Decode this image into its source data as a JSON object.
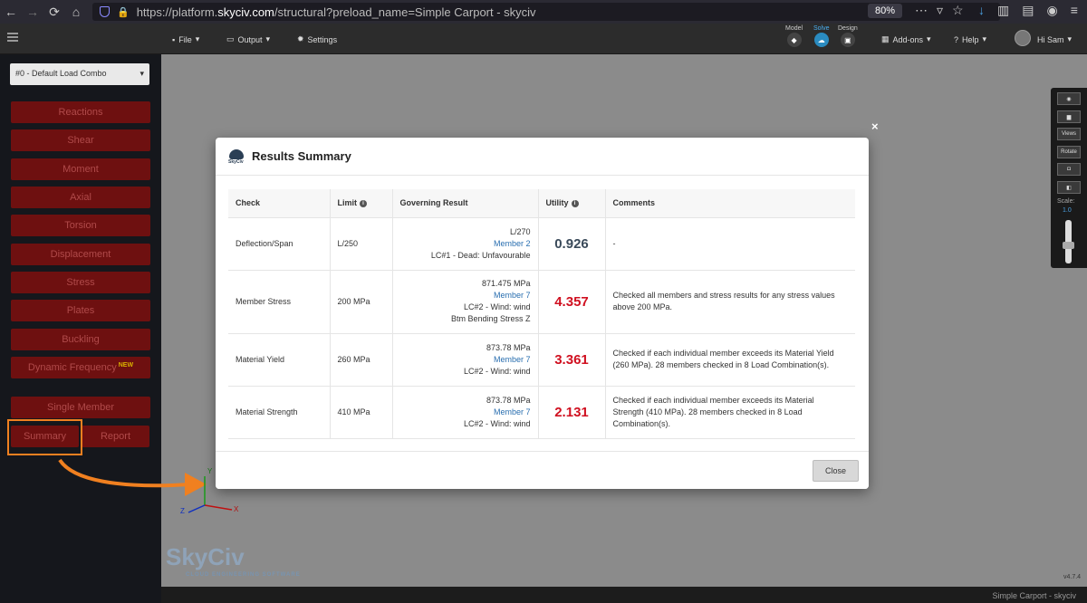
{
  "browser": {
    "url_prefix": "https://platform.",
    "url_host": "skyciv.com",
    "url_path": "/structural?preload_name=Simple Carport - skyciv",
    "zoom": "80%"
  },
  "app": {
    "menu": [
      {
        "label": "File",
        "icon": "page-icon"
      },
      {
        "label": "Output",
        "icon": "monitor-icon"
      },
      {
        "label": "Settings",
        "icon": "gear-icon"
      }
    ],
    "stages": [
      {
        "label": "Model",
        "color": "#444"
      },
      {
        "label": "Solve",
        "color": "#2a8bc0"
      },
      {
        "label": "Design",
        "color": "#444"
      }
    ],
    "addons": "Add-ons",
    "help": "Help",
    "user": "Hi Sam"
  },
  "sidebar": {
    "combo": "#0 - Default Load Combo",
    "buttons": [
      "Reactions",
      "Shear",
      "Moment",
      "Axial",
      "Torsion",
      "Displacement",
      "Stress",
      "Plates",
      "Buckling"
    ],
    "dynamic": "Dynamic Frequency",
    "dynamic_badge": "NEW",
    "single_member": "Single Member",
    "summary": "Summary",
    "report": "Report"
  },
  "canvas": {
    "axis_y": "Y",
    "axis_x": "X",
    "axis_z": "Z",
    "logo": "SkyCiv",
    "logo_sub": "CLOUD ENGINEERING SOFTWARE",
    "version": "v4.7.4",
    "status": "Simple Carport - skyciv",
    "toolbar": {
      "views": "Views",
      "rotate": "Rotate",
      "scale": "Scale:",
      "scale_value": "1.0"
    }
  },
  "modal": {
    "title": "Results Summary",
    "logo_text": "SkyCiv",
    "close_x": "×",
    "close_button": "Close",
    "columns": [
      "Check",
      "Limit",
      "Governing Result",
      "Utility",
      "Comments"
    ],
    "rows": [
      {
        "check": "Deflection/Span",
        "limit": "L/250",
        "gov1": "L/270",
        "gov2": "Member 2",
        "gov3": "LC#1 - Dead: Unfavourable",
        "gov4": "",
        "utility": "0.926",
        "status": "ok",
        "comment": "-"
      },
      {
        "check": "Member Stress",
        "limit": "200 MPa",
        "gov1": "871.475 MPa",
        "gov2": "Member 7",
        "gov3": "LC#2 - Wind: wind",
        "gov4": "Btm Bending Stress Z",
        "utility": "4.357",
        "status": "fail",
        "comment": "Checked all members and stress results for any stress values above 200 MPa."
      },
      {
        "check": "Material Yield",
        "limit": "260 MPa",
        "gov1": "873.78 MPa",
        "gov2": "Member 7",
        "gov3": "LC#2 - Wind: wind",
        "gov4": "",
        "utility": "3.361",
        "status": "fail",
        "comment": "Checked if each individual member exceeds its Material Yield (260 MPa). 28 members checked in 8 Load Combination(s)."
      },
      {
        "check": "Material Strength",
        "limit": "410 MPa",
        "gov1": "873.78 MPa",
        "gov2": "Member 7",
        "gov3": "LC#2 - Wind: wind",
        "gov4": "",
        "utility": "2.131",
        "status": "fail",
        "comment": "Checked if each individual member exceeds its Material Strength (410 MPa). 28 members checked in 8 Load Combination(s)."
      }
    ]
  },
  "colors": {
    "highlight": "#f08020",
    "fail": "#d01020",
    "link": "#2a6fb0"
  }
}
